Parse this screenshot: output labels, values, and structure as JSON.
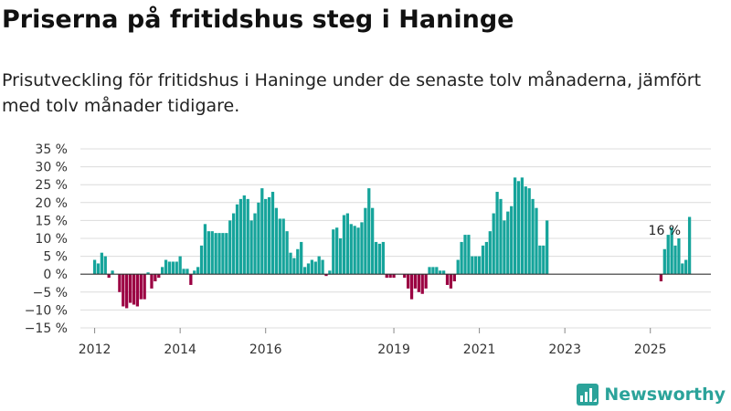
{
  "header": {
    "title": "Priserna på fritidshus steg i Haninge",
    "subtitle": "Prisutveckling för fritidshus i Haninge under de senaste tolv månaderna, jämfört med tolv månader tidigare."
  },
  "brand": {
    "name": "Newsworthy",
    "color": "#2ba39a",
    "icon": "newsworthy-logo-icon"
  },
  "chart_data": {
    "type": "bar",
    "title": "",
    "xlabel": "",
    "ylabel": "",
    "y_unit": "%",
    "ylim": [
      -15,
      35
    ],
    "yticks": [
      -15,
      -10,
      -5,
      0,
      5,
      10,
      15,
      20,
      25,
      30,
      35
    ],
    "ytick_labels": [
      "−15 %",
      "−10 %",
      "−5 %",
      "0 %",
      "5 %",
      "10 %",
      "15 %",
      "20 %",
      "25 %",
      "30 %",
      "35 %"
    ],
    "x_axis": "months",
    "xlim": [
      "2011-09",
      "2026-06"
    ],
    "xticks": [
      "2012-01",
      "2014-01",
      "2016-01",
      "2019-01",
      "2021-01",
      "2023-01",
      "2025-01"
    ],
    "xtick_labels": [
      "2012",
      "2014",
      "2016",
      "2019",
      "2021",
      "2023",
      "2025"
    ],
    "colors": {
      "positive": "#16a49b",
      "negative": "#9b0042"
    },
    "grid": true,
    "legend": "none",
    "annotations": [
      {
        "month": "2025-05",
        "text": "16 %"
      }
    ],
    "series": [
      {
        "start_month": "2012-01",
        "values": [
          4,
          3,
          6,
          5,
          -1,
          1,
          null,
          -5,
          -9,
          -9.5,
          -8,
          -8.5,
          -9,
          -7,
          -7,
          0.5,
          -4,
          -2,
          -1,
          2,
          4,
          3.5,
          3.5,
          3.5,
          5,
          1.5,
          1.5,
          -3,
          1,
          2,
          8,
          14,
          12,
          12,
          11.5,
          11.5,
          11.5,
          11.5,
          15,
          17,
          19.5,
          21,
          22,
          21,
          15,
          17,
          20,
          24,
          21,
          21.5,
          23,
          18.5,
          15.5,
          15.5,
          12,
          6,
          4.5,
          7,
          9,
          2,
          3,
          4,
          3.5,
          5,
          4,
          -0.5,
          1,
          12.5,
          13,
          10,
          16.5,
          17,
          14,
          13.5,
          13,
          14.5,
          18.5,
          24,
          18.5,
          9,
          8.5,
          9,
          -1,
          -1,
          -1,
          null,
          null,
          -1,
          -4,
          -7,
          -4,
          -5,
          -5.5,
          -4,
          2,
          2,
          2,
          1,
          1,
          -3,
          -4,
          -2,
          4,
          9,
          11,
          11,
          5,
          5,
          5,
          8,
          9,
          12,
          17,
          23,
          21,
          15,
          17.5,
          19,
          27,
          26,
          27,
          24.5,
          24,
          21,
          18.5,
          8,
          8,
          15,
          null,
          null,
          null,
          null,
          null,
          null,
          null,
          null,
          null,
          null,
          null,
          null,
          null,
          null,
          null,
          null,
          null,
          null,
          null,
          null,
          null,
          null,
          null,
          null,
          null,
          null,
          null,
          null,
          null,
          null,
          null,
          -2,
          7,
          11,
          13,
          8,
          10,
          3,
          4,
          16
        ]
      }
    ]
  }
}
